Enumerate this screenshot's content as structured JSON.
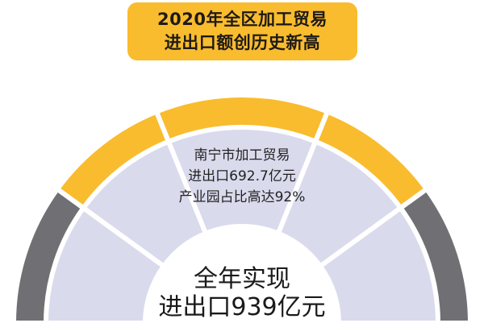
{
  "title": {
    "line1": "2020年全区加工贸易",
    "line2": "进出口额创历史新高"
  },
  "middle_text": {
    "line1": "南宁市加工贸易",
    "line2": "进出口692.7亿元",
    "line3": "产业园占比高达92%"
  },
  "center_text": {
    "line1": "全年实现",
    "line2": "进出口939亿元"
  },
  "colors": {
    "accent": "#f9bc2e",
    "gray": "#707074",
    "lavender": "#dadaed"
  },
  "ring_segments": [
    "gray",
    "accent",
    "accent",
    "accent",
    "gray"
  ]
}
